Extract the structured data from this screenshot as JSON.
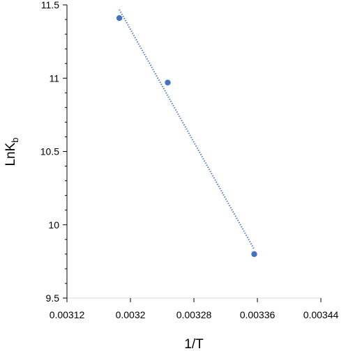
{
  "chart_data": {
    "type": "scatter",
    "x_label": "1/T",
    "y_label_main": "LnK",
    "y_label_sub": "b",
    "x_ticks": [
      "0.00312",
      "0.0032",
      "0.00328",
      "0.00336",
      "0.00344"
    ],
    "y_ticks": [
      "9.5",
      "10",
      "10.5",
      "11",
      "11.5"
    ],
    "xlim": [
      0.00312,
      0.00344
    ],
    "ylim": [
      9.5,
      11.5
    ],
    "grid": false,
    "trendline": "linear",
    "point_color": "#4472C4",
    "trendline_color": "#4472C4",
    "points": [
      {
        "x": 0.003186,
        "y": 11.41
      },
      {
        "x": 0.003247,
        "y": 10.97
      },
      {
        "x": 0.003356,
        "y": 9.8
      }
    ]
  }
}
